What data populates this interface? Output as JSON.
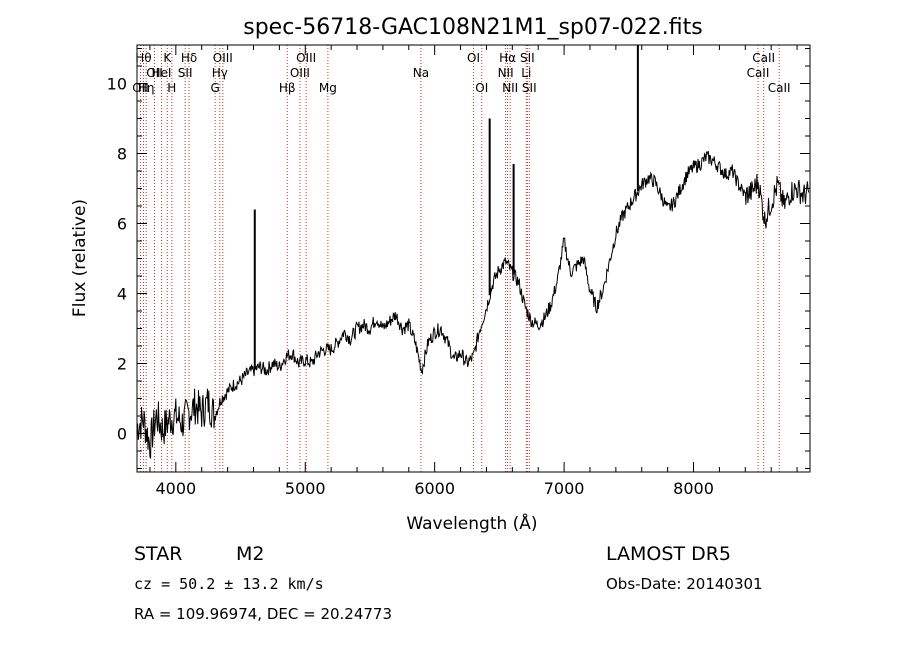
{
  "chart_data": {
    "type": "line",
    "title": "spec-56718-GAC108N21M1_sp07-022.fits",
    "xlabel": "Wavelength (Å)",
    "ylabel": "Flux (relative)",
    "xlim": [
      3700,
      8900
    ],
    "ylim": [
      -1.1,
      11.1
    ],
    "x_ticks": [
      4000,
      5000,
      6000,
      7000,
      8000
    ],
    "y_ticks": [
      0,
      2,
      4,
      6,
      8,
      10
    ],
    "grid": false,
    "series": [
      {
        "color": "#000000",
        "x": [
          3700,
          3750,
          3800,
          3850,
          3900,
          3950,
          4000,
          4050,
          4100,
          4150,
          4200,
          4250,
          4300,
          4350,
          4400,
          4450,
          4500,
          4550,
          4600,
          4650,
          4700,
          4750,
          4800,
          4850,
          4900,
          4950,
          5000,
          5050,
          5100,
          5150,
          5200,
          5250,
          5300,
          5350,
          5400,
          5450,
          5500,
          5550,
          5600,
          5650,
          5700,
          5750,
          5800,
          5850,
          5900,
          5950,
          6000,
          6050,
          6100,
          6150,
          6200,
          6250,
          6300,
          6350,
          6400,
          6450,
          6500,
          6550,
          6600,
          6650,
          6700,
          6750,
          6800,
          6850,
          6900,
          6950,
          7000,
          7050,
          7100,
          7150,
          7200,
          7250,
          7300,
          7350,
          7400,
          7450,
          7500,
          7550,
          7600,
          7650,
          7700,
          7750,
          7800,
          7850,
          7900,
          7950,
          8000,
          8050,
          8100,
          8150,
          8200,
          8250,
          8300,
          8350,
          8400,
          8450,
          8500,
          8550,
          8600,
          8650,
          8700,
          8750,
          8800,
          8850,
          8890
        ],
        "y": [
          0.2,
          0.4,
          -0.3,
          0.5,
          0.1,
          0.4,
          0.5,
          0.3,
          0.6,
          0.8,
          0.6,
          0.9,
          0.5,
          1.0,
          1.2,
          1.4,
          1.5,
          1.7,
          1.8,
          1.9,
          1.8,
          2.0,
          1.9,
          2.2,
          2.3,
          2.0,
          2.1,
          2.0,
          2.3,
          2.4,
          2.4,
          2.6,
          2.9,
          2.7,
          3.0,
          3.1,
          3.0,
          3.3,
          3.0,
          3.2,
          3.4,
          3.0,
          3.1,
          2.6,
          1.8,
          2.6,
          2.9,
          3.0,
          2.6,
          2.1,
          2.3,
          2.0,
          2.2,
          3.0,
          3.6,
          4.3,
          4.7,
          4.9,
          4.6,
          4.3,
          3.6,
          3.2,
          3.1,
          3.3,
          3.7,
          4.4,
          5.5,
          4.6,
          4.8,
          5.0,
          4.1,
          3.6,
          4.1,
          4.9,
          5.7,
          6.2,
          6.5,
          6.8,
          7.1,
          7.3,
          7.2,
          6.8,
          6.4,
          6.6,
          7.0,
          7.4,
          7.6,
          7.7,
          7.9,
          7.8,
          7.6,
          7.4,
          7.5,
          7.1,
          6.8,
          6.9,
          7.2,
          6.1,
          6.6,
          7.1,
          6.5,
          6.9,
          7.0,
          6.8,
          6.9
        ],
        "spikes": [
          {
            "x": 4610,
            "y": 6.4
          },
          {
            "x": 6425,
            "y": 9.0
          },
          {
            "x": 6610,
            "y": 7.7
          },
          {
            "x": 7570,
            "y": 11.1
          }
        ]
      }
    ],
    "lines": [
      {
        "x": 3727,
        "label": "OII",
        "row": 2
      },
      {
        "x": 3750,
        "label": "Hθ",
        "row": 0
      },
      {
        "x": 3771,
        "label": "Hη",
        "row": 2
      },
      {
        "x": 3835,
        "label": "OII",
        "row": 1
      },
      {
        "x": 3889,
        "label": "HeI",
        "row": 1
      },
      {
        "x": 3934,
        "label": "K",
        "row": 0
      },
      {
        "x": 3969,
        "label": "H",
        "row": 2
      },
      {
        "x": 4072,
        "label": "SII",
        "row": 1
      },
      {
        "x": 4102,
        "label": "Hδ",
        "row": 0
      },
      {
        "x": 4304,
        "label": "G",
        "row": 2
      },
      {
        "x": 4340,
        "label": "Hγ",
        "row": 1
      },
      {
        "x": 4363,
        "label": "OIII",
        "row": 0
      },
      {
        "x": 4861,
        "label": "Hβ",
        "row": 2
      },
      {
        "x": 4959,
        "label": "OIII",
        "row": 1
      },
      {
        "x": 5007,
        "label": "OIII",
        "row": 0
      },
      {
        "x": 5175,
        "label": "Mg",
        "row": 2
      },
      {
        "x": 5894,
        "label": "Na",
        "row": 1
      },
      {
        "x": 6300,
        "label": "OI",
        "row": 0
      },
      {
        "x": 6364,
        "label": "OI",
        "row": 2
      },
      {
        "x": 6548,
        "label": "NII",
        "row": 1
      },
      {
        "x": 6563,
        "label": "Hα",
        "row": 0
      },
      {
        "x": 6583,
        "label": "NII",
        "row": 2
      },
      {
        "x": 6708,
        "label": "Li",
        "row": 1
      },
      {
        "x": 6716,
        "label": "SII",
        "row": 0
      },
      {
        "x": 6731,
        "label": "SII",
        "row": 2
      },
      {
        "x": 8498,
        "label": "CaII",
        "row": 1
      },
      {
        "x": 8542,
        "label": "CaII",
        "row": 0
      },
      {
        "x": 8662,
        "label": "CaII",
        "row": 2
      }
    ]
  },
  "info": {
    "class": "STAR",
    "subclass": "M2",
    "survey": "LAMOST DR5",
    "cz": "cz = 50.2 ± 13.2 km/s",
    "obs_date": "Obs-Date: 20140301",
    "radec": "RA = 109.96974, DEC =  20.24773"
  }
}
